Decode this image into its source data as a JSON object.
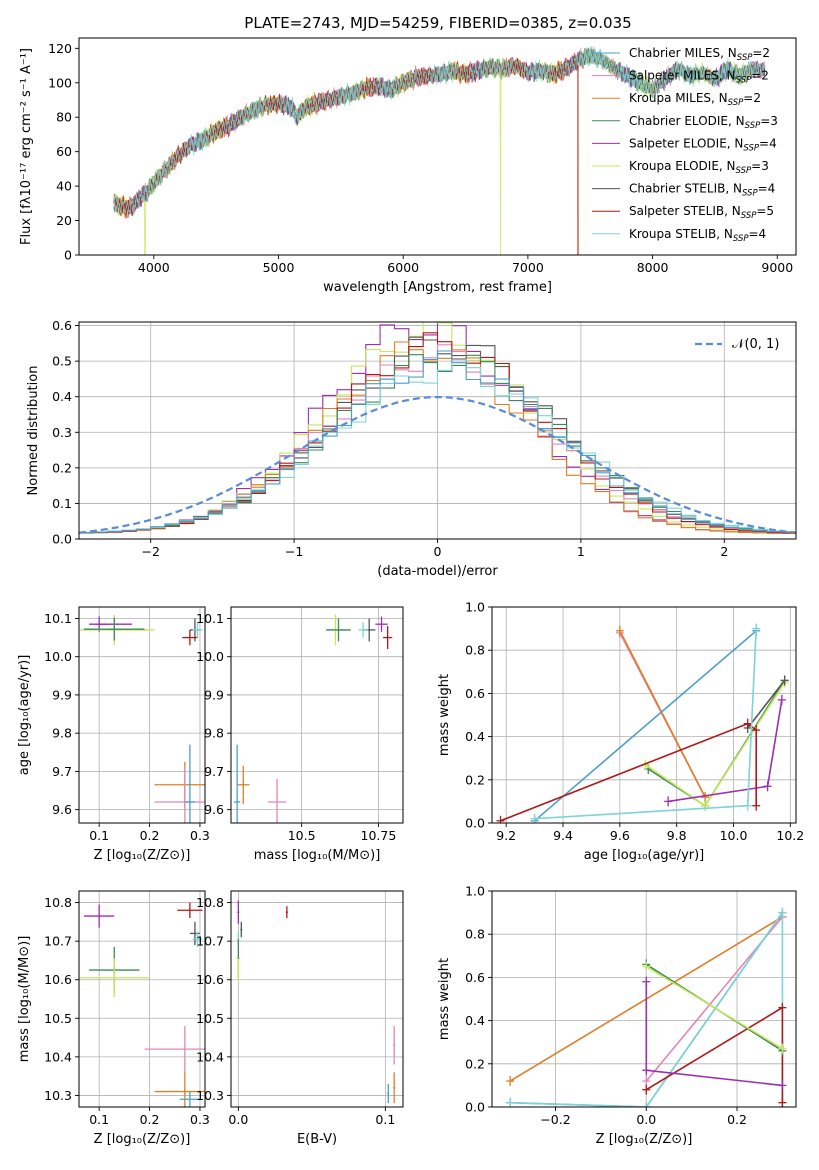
{
  "figure_title": "PLATE=2743, MJD=54259, FIBERID=0385, z=0.035",
  "colors": {
    "chabrier_miles": "#4c9fc9",
    "salpeter_miles": "#e385b8",
    "kroupa_miles": "#e07e26",
    "chabrier_elodie": "#3c8a5a",
    "salpeter_elodie": "#9c2fb0",
    "kroupa_elodie": "#c5e85a",
    "chabrier_stelib": "#555555",
    "salpeter_stelib": "#b01818",
    "kroupa_stelib": "#7ed3d8",
    "normal_curve": "#5b8bd6",
    "grid": "#b0b0b0"
  },
  "chart_data": [
    {
      "id": "spectrum",
      "type": "line",
      "xlabel": "wavelength [Angstrom, rest frame]",
      "ylabel": "Flux [fλ10⁻¹⁷ erg cm⁻² s⁻¹ A⁻¹]",
      "xlim": [
        3400,
        9150
      ],
      "ylim": [
        0,
        126
      ],
      "xticks": [
        4000,
        5000,
        6000,
        7000,
        8000,
        9000
      ],
      "yticks": [
        0,
        20,
        40,
        60,
        80,
        100,
        120
      ],
      "grid": false,
      "legend_position": "right",
      "series": [
        {
          "name": "Chabrier MILES, N",
          "sub": "SSP",
          "eq": "=2",
          "key": "chabrier_miles"
        },
        {
          "name": "Salpeter MILES, N",
          "sub": "SSP",
          "eq": "=2",
          "key": "salpeter_miles"
        },
        {
          "name": "Kroupa MILES, N",
          "sub": "SSP",
          "eq": "=2",
          "key": "kroupa_miles"
        },
        {
          "name": "Chabrier ELODIE, N",
          "sub": "SSP",
          "eq": "=3",
          "key": "chabrier_elodie"
        },
        {
          "name": "Salpeter ELODIE, N",
          "sub": "SSP",
          "eq": "=4",
          "key": "salpeter_elodie"
        },
        {
          "name": "Kroupa ELODIE, N",
          "sub": "SSP",
          "eq": "=3",
          "key": "kroupa_elodie"
        },
        {
          "name": "Chabrier STELIB, N",
          "sub": "SSP",
          "eq": "=4",
          "key": "chabrier_stelib"
        },
        {
          "name": "Salpeter STELIB, N",
          "sub": "SSP",
          "eq": "=5",
          "key": "salpeter_stelib"
        },
        {
          "name": "Kroupa STELIB, N",
          "sub": "SSP",
          "eq": "=4",
          "key": "kroupa_stelib"
        }
      ],
      "envelope": {
        "wavelength": [
          3680,
          3750,
          3800,
          3850,
          3900,
          3950,
          4000,
          4100,
          4200,
          4300,
          4400,
          4500,
          4600,
          4700,
          4800,
          4900,
          5000,
          5100,
          5150,
          5200,
          5300,
          5400,
          5500,
          5600,
          5700,
          5800,
          5900,
          6000,
          6100,
          6200,
          6300,
          6400,
          6500,
          6600,
          6700,
          6800,
          6900,
          7000,
          7100,
          7200,
          7300,
          7400,
          7500,
          7600,
          7700,
          7800,
          7900,
          8000,
          8100,
          8200,
          8300,
          8400,
          8500,
          8600,
          8700,
          8800,
          8900
        ],
        "flux": [
          30,
          28,
          27,
          30,
          34,
          37,
          42,
          50,
          58,
          64,
          67,
          72,
          75,
          80,
          84,
          87,
          88,
          86,
          80,
          85,
          88,
          90,
          92,
          94,
          97,
          98,
          96,
          100,
          103,
          104,
          105,
          107,
          105,
          107,
          109,
          108,
          110,
          106,
          107,
          105,
          108,
          113,
          116,
          113,
          108,
          104,
          100,
          96,
          102,
          108,
          104,
          106,
          102,
          108,
          104,
          108,
          107
        ]
      },
      "cutoffs": [
        {
          "key": "kroupa_elodie",
          "wavelength": 3930
        },
        {
          "key": "kroupa_elodie",
          "wavelength": 6780
        },
        {
          "key": "salpeter_stelib",
          "wavelength": 7400
        },
        {
          "key": "kroupa_miles",
          "wavelength": 7405
        }
      ]
    },
    {
      "id": "residuals",
      "type": "bar",
      "subtype": "step-histogram",
      "xlabel": "(data-model)/error",
      "ylabel": "Normed distribution",
      "xlim": [
        -2.5,
        2.5
      ],
      "ylim": [
        0,
        0.61
      ],
      "xticks": [
        -2,
        -1,
        0,
        1,
        2
      ],
      "yticks": [
        0.0,
        0.1,
        0.2,
        0.3,
        0.4,
        0.5,
        0.6
      ],
      "grid": true,
      "legend_position": "top-right",
      "normal_label": "𝒩(0, 1)",
      "bin_width": 0.1,
      "series": [
        {
          "key": "salpeter_elodie",
          "peak": 0.585,
          "sigma": 0.7,
          "offset": -0.1
        },
        {
          "key": "kroupa_elodie",
          "peak": 0.57,
          "sigma": 0.72,
          "offset": -0.05
        },
        {
          "key": "chabrier_stelib",
          "peak": 0.535,
          "sigma": 0.75,
          "offset": 0.05
        },
        {
          "key": "kroupa_miles",
          "peak": 0.52,
          "sigma": 0.7,
          "offset": -0.08
        },
        {
          "key": "salpeter_miles",
          "peak": 0.5,
          "sigma": 0.76,
          "offset": 0.0
        },
        {
          "key": "salpeter_stelib",
          "peak": 0.53,
          "sigma": 0.74,
          "offset": 0.02
        },
        {
          "key": "chabrier_elodie",
          "peak": 0.49,
          "sigma": 0.78,
          "offset": 0.06
        },
        {
          "key": "kroupa_stelib",
          "peak": 0.46,
          "sigma": 0.8,
          "offset": 0.08
        },
        {
          "key": "chabrier_miles",
          "peak": 0.48,
          "sigma": 0.78,
          "offset": 0.04
        }
      ]
    },
    {
      "id": "age_vs_z",
      "type": "scatter",
      "xlabel": "Z [log₁₀(Z/Z⊙)]",
      "ylabel": "age  [log₁₀(age/yr)]",
      "xlim": [
        0.06,
        0.31
      ],
      "ylim": [
        9.565,
        10.13
      ],
      "xticks": [
        0.1,
        0.2,
        0.3
      ],
      "yticks": [
        9.6,
        9.7,
        9.8,
        9.9,
        10.0,
        10.1
      ],
      "grid": true,
      "points": [
        {
          "key": "salpeter_elodie",
          "x": 0.1,
          "y": 10.085,
          "xerr": 0.02,
          "yerr": 0.02
        },
        {
          "key": "salpeter_elodie",
          "x": 0.13,
          "y": 10.085,
          "xerr": 0.035,
          "yerr": 0.015
        },
        {
          "key": "kroupa_elodie",
          "x": 0.13,
          "y": 10.07,
          "xerr": 0.08,
          "yerr": 0.04
        },
        {
          "key": "chabrier_elodie",
          "x": 0.13,
          "y": 10.072,
          "xerr": 0.06,
          "yerr": 0.03
        },
        {
          "key": "chabrier_stelib",
          "x": 0.29,
          "y": 10.07,
          "xerr": 0.01,
          "yerr": 0.03
        },
        {
          "key": "salpeter_stelib",
          "x": 0.28,
          "y": 10.05,
          "xerr": 0.015,
          "yerr": 0.02
        },
        {
          "key": "kroupa_stelib",
          "x": 0.295,
          "y": 10.07,
          "xerr": 0.01,
          "yerr": 0.02
        },
        {
          "key": "kroupa_miles",
          "x": 0.27,
          "y": 9.665,
          "xerr": 0.06,
          "yerr": 0.06
        },
        {
          "key": "salpeter_miles",
          "x": 0.27,
          "y": 9.62,
          "xerr": 0.06,
          "yerr": 0.09
        },
        {
          "key": "chabrier_miles",
          "x": 0.28,
          "y": 9.62,
          "xerr": 0.01,
          "yerr": 0.15
        }
      ]
    },
    {
      "id": "age_vs_mass",
      "type": "scatter",
      "xlabel": "mass [log₁₀(M/M⊙)]",
      "ylabel": "",
      "xlim": [
        10.27,
        10.83
      ],
      "ylim": [
        9.565,
        10.13
      ],
      "xticks": [
        10.5,
        10.75
      ],
      "ytick_values": [
        9.6,
        9.7,
        9.8,
        9.9,
        10.0,
        10.1
      ],
      "grid": true,
      "points": [
        {
          "key": "kroupa_elodie",
          "x": 10.61,
          "y": 10.07,
          "xerr": 0.03,
          "yerr": 0.04
        },
        {
          "key": "chabrier_elodie",
          "x": 10.62,
          "y": 10.07,
          "xerr": 0.04,
          "yerr": 0.03
        },
        {
          "key": "salpeter_elodie",
          "x": 10.76,
          "y": 10.085,
          "xerr": 0.02,
          "yerr": 0.02
        },
        {
          "key": "chabrier_stelib",
          "x": 10.72,
          "y": 10.07,
          "xerr": 0.02,
          "yerr": 0.03
        },
        {
          "key": "salpeter_stelib",
          "x": 10.78,
          "y": 10.05,
          "xerr": 0.015,
          "yerr": 0.03
        },
        {
          "key": "kroupa_stelib",
          "x": 10.7,
          "y": 10.07,
          "xerr": 0.015,
          "yerr": 0.02
        },
        {
          "key": "kroupa_miles",
          "x": 10.31,
          "y": 9.665,
          "xerr": 0.02,
          "yerr": 0.05
        },
        {
          "key": "salpeter_miles",
          "x": 10.42,
          "y": 9.62,
          "xerr": 0.03,
          "yerr": 0.06
        },
        {
          "key": "chabrier_miles",
          "x": 10.29,
          "y": 9.62,
          "xerr": 0.01,
          "yerr": 0.15
        }
      ]
    },
    {
      "id": "weight_vs_age",
      "type": "line",
      "xlabel": "age  [log₁₀(age/yr)]",
      "ylabel": "mass weight",
      "xlim": [
        9.15,
        10.22
      ],
      "ylim": [
        0,
        1.0
      ],
      "xticks": [
        9.2,
        9.4,
        9.6,
        9.8,
        10.0,
        10.2
      ],
      "yticks": [
        0.0,
        0.2,
        0.4,
        0.6,
        0.8,
        1.0
      ],
      "grid": true,
      "series": [
        {
          "key": "salpeter_miles",
          "x": [
            9.6,
            9.9
          ],
          "y": [
            0.88,
            0.12
          ]
        },
        {
          "key": "kroupa_miles",
          "x": [
            9.6,
            9.9
          ],
          "y": [
            0.89,
            0.12
          ]
        },
        {
          "key": "chabrier_miles",
          "x": [
            9.3,
            10.08
          ],
          "y": [
            0.01,
            0.89
          ]
        },
        {
          "key": "chabrier_elodie",
          "x": [
            9.7,
            9.9,
            10.18
          ],
          "y": [
            0.25,
            0.08,
            0.66
          ]
        },
        {
          "key": "kroupa_elodie",
          "x": [
            9.69,
            9.9,
            10.18
          ],
          "y": [
            0.27,
            0.08,
            0.65
          ]
        },
        {
          "key": "salpeter_elodie",
          "x": [
            9.77,
            10.12,
            10.17
          ],
          "y": [
            0.1,
            0.17,
            0.57
          ]
        },
        {
          "key": "chabrier_stelib",
          "x": [
            10.05,
            10.18
          ],
          "y": [
            0.44,
            0.66
          ]
        },
        {
          "key": "salpeter_stelib",
          "x": [
            9.18,
            10.05,
            10.08,
            10.08
          ],
          "y": [
            0.01,
            0.46,
            0.43,
            0.08
          ]
        },
        {
          "key": "kroupa_stelib",
          "x": [
            9.3,
            10.05,
            10.08
          ],
          "y": [
            0.02,
            0.08,
            0.9
          ]
        }
      ]
    },
    {
      "id": "mass_vs_z",
      "type": "scatter",
      "xlabel": "Z [log₁₀(Z/Z⊙)]",
      "ylabel": "mass [log₁₀(M/M⊙)]",
      "xlim": [
        0.06,
        0.31
      ],
      "ylim": [
        10.27,
        10.83
      ],
      "xticks": [
        0.1,
        0.2,
        0.3
      ],
      "yticks": [
        10.3,
        10.4,
        10.5,
        10.6,
        10.7,
        10.8
      ],
      "grid": true,
      "points": [
        {
          "key": "salpeter_elodie",
          "x": 0.1,
          "y": 10.765,
          "xerr": 0.03,
          "yerr": 0.03
        },
        {
          "key": "salpeter_stelib",
          "x": 0.28,
          "y": 10.78,
          "xerr": 0.025,
          "yerr": 0.02
        },
        {
          "key": "chabrier_stelib",
          "x": 0.29,
          "y": 10.72,
          "xerr": 0.01,
          "yerr": 0.03
        },
        {
          "key": "kroupa_stelib",
          "x": 0.295,
          "y": 10.705,
          "xerr": 0.01,
          "yerr": 0.02
        },
        {
          "key": "chabrier_elodie",
          "x": 0.13,
          "y": 10.625,
          "xerr": 0.05,
          "yerr": 0.06
        },
        {
          "key": "kroupa_elodie",
          "x": 0.13,
          "y": 10.605,
          "xerr": 0.07,
          "yerr": 0.05
        },
        {
          "key": "salpeter_miles",
          "x": 0.27,
          "y": 10.42,
          "xerr": 0.08,
          "yerr": 0.06
        },
        {
          "key": "kroupa_miles",
          "x": 0.27,
          "y": 10.31,
          "xerr": 0.06,
          "yerr": 0.05
        },
        {
          "key": "chabrier_miles",
          "x": 0.28,
          "y": 10.29,
          "xerr": 0.02,
          "yerr": 0.02
        }
      ]
    },
    {
      "id": "mass_vs_ebv",
      "type": "scatter",
      "xlabel": "E(B-V)",
      "ylabel": "",
      "xlim": [
        -0.005,
        0.112
      ],
      "ylim": [
        10.27,
        10.83
      ],
      "xticks": [
        0.0,
        0.1
      ],
      "ytick_values": [
        10.3,
        10.4,
        10.5,
        10.6,
        10.7,
        10.8
      ],
      "grid": true,
      "points": [
        {
          "key": "salpeter_elodie",
          "x": 0.0,
          "y": 10.775,
          "xerr": 0.0,
          "yerr": 0.03
        },
        {
          "key": "chabrier_stelib",
          "x": 0.002,
          "y": 10.73,
          "xerr": 0.0,
          "yerr": 0.02
        },
        {
          "key": "kroupa_stelib",
          "x": 0.0,
          "y": 10.705,
          "xerr": 0.0,
          "yerr": 0.02
        },
        {
          "key": "chabrier_elodie",
          "x": 0.0,
          "y": 10.655,
          "xerr": 0.0,
          "yerr": 0.05
        },
        {
          "key": "kroupa_elodie",
          "x": 0.0,
          "y": 10.625,
          "xerr": 0.0,
          "yerr": 0.03
        },
        {
          "key": "salpeter_stelib",
          "x": 0.033,
          "y": 10.775,
          "xerr": 0.0,
          "yerr": 0.015
        },
        {
          "key": "salpeter_miles",
          "x": 0.106,
          "y": 10.43,
          "xerr": 0.0,
          "yerr": 0.05
        },
        {
          "key": "kroupa_miles",
          "x": 0.106,
          "y": 10.32,
          "xerr": 0.0,
          "yerr": 0.04
        },
        {
          "key": "chabrier_miles",
          "x": 0.102,
          "y": 10.305,
          "xerr": 0.0,
          "yerr": 0.025
        }
      ]
    },
    {
      "id": "weight_vs_z",
      "type": "line",
      "xlabel": "Z [log₁₀(Z/Z⊙)]",
      "ylabel": "mass weight",
      "xlim": [
        -0.34,
        0.33
      ],
      "ylim": [
        0,
        1.0
      ],
      "xticks": [
        -0.2,
        0.0,
        0.2
      ],
      "yticks": [
        0.0,
        0.2,
        0.4,
        0.6,
        0.8,
        1.0
      ],
      "grid": true,
      "series": [
        {
          "key": "kroupa_miles",
          "x": [
            -0.3,
            0.3
          ],
          "y": [
            0.12,
            0.88
          ]
        },
        {
          "key": "salpeter_miles",
          "x": [
            0.0,
            0.3
          ],
          "y": [
            0.12,
            0.88
          ]
        },
        {
          "key": "chabrier_miles",
          "x": [
            -0.3,
            0.0,
            0.3
          ],
          "y": [
            0.02,
            0.0,
            0.9
          ]
        },
        {
          "key": "kroupa_stelib",
          "x": [
            -0.3,
            0.0,
            0.3,
            0.3
          ],
          "y": [
            0.02,
            0.0,
            0.9,
            0.0
          ]
        },
        {
          "key": "salpeter_stelib",
          "x": [
            0.0,
            0.3,
            0.3
          ],
          "y": [
            0.08,
            0.46,
            0.02
          ]
        },
        {
          "key": "salpeter_elodie",
          "x": [
            0.0,
            0.0,
            0.3
          ],
          "y": [
            0.58,
            0.17,
            0.1
          ]
        },
        {
          "key": "chabrier_elodie",
          "x": [
            0.0,
            0.3
          ],
          "y": [
            0.66,
            0.26
          ]
        },
        {
          "key": "kroupa_elodie",
          "x": [
            0.0,
            0.3
          ],
          "y": [
            0.65,
            0.27
          ]
        }
      ]
    }
  ]
}
